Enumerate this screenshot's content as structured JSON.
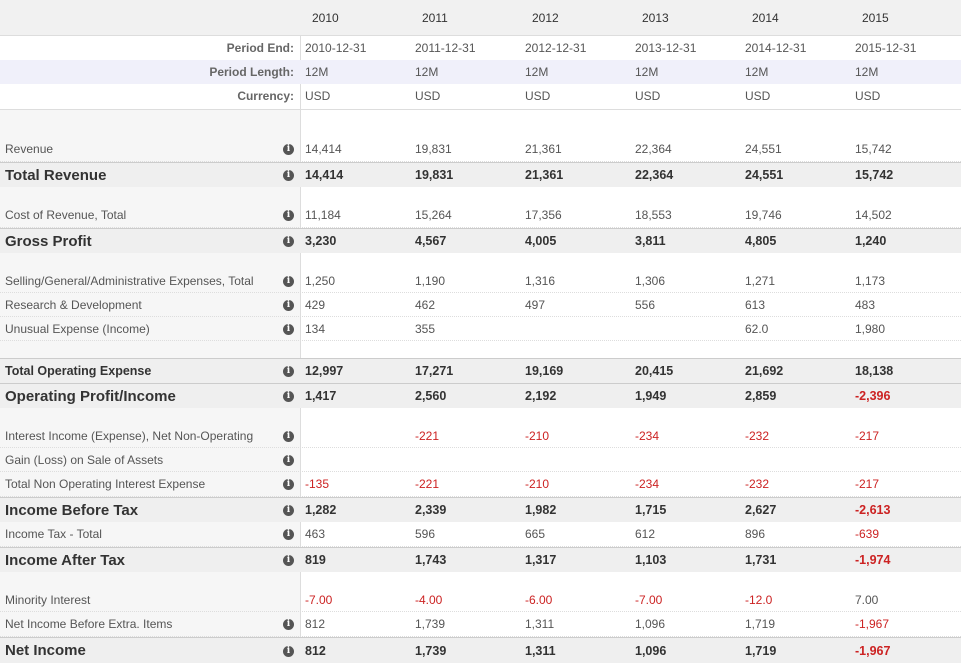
{
  "table": {
    "years": [
      "2010",
      "2011",
      "2012",
      "2013",
      "2014",
      "2015"
    ],
    "rows": [
      {
        "label": "Period End:",
        "values": [
          "2010-12-31",
          "2011-12-31",
          "2012-12-31",
          "2013-12-31",
          "2014-12-31",
          "2015-12-31"
        ]
      },
      {
        "label": "Period Length:",
        "values": [
          "12M",
          "12M",
          "12M",
          "12M",
          "12M",
          "12M"
        ]
      },
      {
        "label": "Currency:",
        "values": [
          "USD",
          "USD",
          "USD",
          "USD",
          "USD",
          "USD"
        ]
      },
      {
        "label": "Revenue",
        "values": [
          "14,414",
          "19,831",
          "21,361",
          "22,364",
          "24,551",
          "15,742"
        ]
      },
      {
        "label": "Total Revenue",
        "values": [
          "14,414",
          "19,831",
          "21,361",
          "22,364",
          "24,551",
          "15,742"
        ]
      },
      {
        "label": "Cost of Revenue, Total",
        "values": [
          "11,184",
          "15,264",
          "17,356",
          "18,553",
          "19,746",
          "14,502"
        ]
      },
      {
        "label": "Gross Profit",
        "values": [
          "3,230",
          "4,567",
          "4,005",
          "3,811",
          "4,805",
          "1,240"
        ]
      },
      {
        "label": "Selling/General/Administrative Expenses, Total",
        "values": [
          "1,250",
          "1,190",
          "1,316",
          "1,306",
          "1,271",
          "1,173"
        ]
      },
      {
        "label": "Research & Development",
        "values": [
          "429",
          "462",
          "497",
          "556",
          "613",
          "483"
        ]
      },
      {
        "label": "Unusual Expense (Income)",
        "values": [
          "134",
          "355",
          null,
          null,
          "62.0",
          "1,980"
        ]
      },
      {
        "label": "Total Operating Expense",
        "values": [
          "12,997",
          "17,271",
          "19,169",
          "20,415",
          "21,692",
          "18,138"
        ]
      },
      {
        "label": "Operating Profit/Income",
        "values": [
          "1,417",
          "2,560",
          "2,192",
          "1,949",
          "2,859",
          "-2,396"
        ]
      },
      {
        "label": "Interest Income (Expense), Net Non-Operating",
        "values": [
          null,
          "-221",
          "-210",
          "-234",
          "-232",
          "-217"
        ]
      },
      {
        "label": "Gain (Loss) on Sale of Assets",
        "values": [
          null,
          null,
          null,
          null,
          null,
          null
        ]
      },
      {
        "label": "Total Non Operating Interest Expense",
        "values": [
          "-135",
          "-221",
          "-210",
          "-234",
          "-232",
          "-217"
        ]
      },
      {
        "label": "Income Before Tax",
        "values": [
          "1,282",
          "2,339",
          "1,982",
          "1,715",
          "2,627",
          "-2,613"
        ]
      },
      {
        "label": "Income Tax - Total",
        "values": [
          "463",
          "596",
          "665",
          "612",
          "896",
          "-639"
        ]
      },
      {
        "label": "Income After Tax",
        "values": [
          "819",
          "1,743",
          "1,317",
          "1,103",
          "1,731",
          "-1,974"
        ]
      },
      {
        "label": "Minority Interest",
        "values": [
          "-7.00",
          "-4.00",
          "-6.00",
          "-7.00",
          "-12.0",
          "7.00"
        ]
      },
      {
        "label": "Net Income Before Extra. Items",
        "values": [
          "812",
          "1,739",
          "1,311",
          "1,096",
          "1,719",
          "-1,967"
        ]
      },
      {
        "label": "Net Income",
        "values": [
          "812",
          "1,739",
          "1,311",
          "1,096",
          "1,719",
          "-1,967"
        ]
      }
    ]
  }
}
